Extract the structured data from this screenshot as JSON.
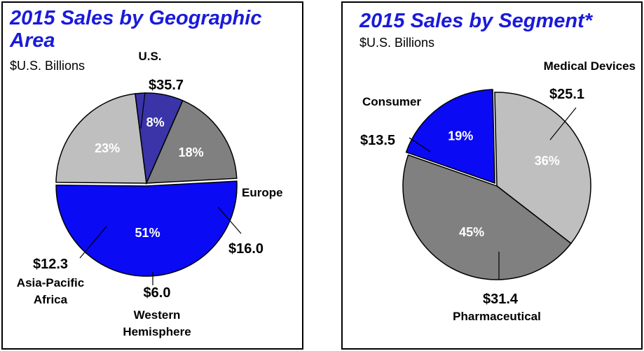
{
  "chart_data": [
    {
      "type": "pie",
      "title": "2015 Sales by Geographic Area",
      "subtitle": "$U.S. Billions",
      "slices": [
        {
          "name": "U.S.",
          "value": 35.7,
          "value_label": "$35.7",
          "pct_label": "51%",
          "color": "#0a0af5"
        },
        {
          "name": "Europe",
          "value": 16.0,
          "value_label": "$16.0",
          "pct_label": "23%",
          "color": "#bfbfbf"
        },
        {
          "name": "Western Hemisphere",
          "value": 6.0,
          "value_label": "$6.0",
          "pct_label": "8%",
          "color": "#3a34a8"
        },
        {
          "name": "Asia-Pacific Africa",
          "value": 12.3,
          "value_label": "$12.3",
          "pct_label": "18%",
          "color": "#808080"
        }
      ]
    },
    {
      "type": "pie",
      "title": "2015 Sales by Segment*",
      "subtitle": "$U.S. Billions",
      "slices": [
        {
          "name": "Consumer",
          "value": 13.5,
          "value_label": "$13.5",
          "pct_label": "19%",
          "color": "#0a0af5"
        },
        {
          "name": "Medical Devices",
          "value": 25.1,
          "value_label": "$25.1",
          "pct_label": "36%",
          "color": "#bfbfbf"
        },
        {
          "name": "Pharmaceutical",
          "value": 31.4,
          "value_label": "$31.4",
          "pct_label": "45%",
          "color": "#808080"
        }
      ]
    }
  ]
}
